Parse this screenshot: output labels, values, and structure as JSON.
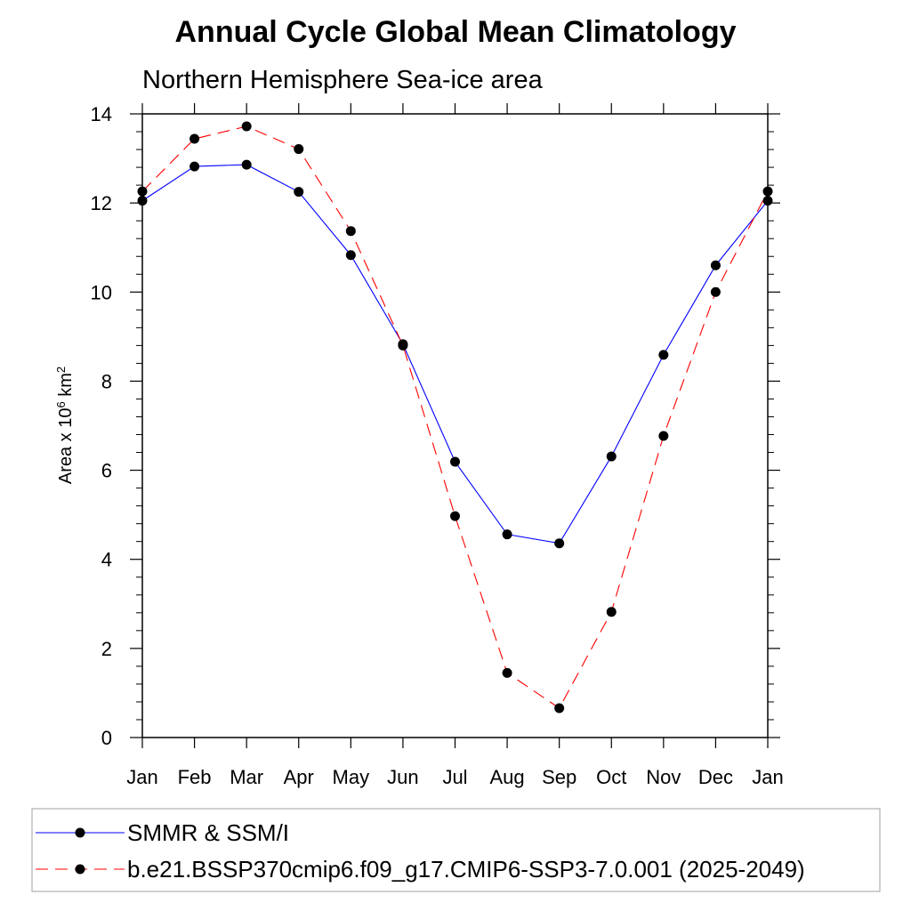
{
  "chart_data": {
    "type": "line",
    "title": "Annual Cycle Global Mean Climatology",
    "subtitle": "Northern Hemisphere Sea-ice area",
    "xlabel": "",
    "ylabel_prefix": "Area x 10",
    "ylabel_exp1": "6",
    "ylabel_unit": " km",
    "ylabel_exp2": "2",
    "categories": [
      "Jan",
      "Feb",
      "Mar",
      "Apr",
      "May",
      "Jun",
      "Jul",
      "Aug",
      "Sep",
      "Oct",
      "Nov",
      "Dec",
      "Jan"
    ],
    "ylim": [
      0,
      14
    ],
    "yticks": [
      "0",
      "2",
      "4",
      "6",
      "8",
      "10",
      "12",
      "14"
    ],
    "grid": false,
    "legend_position": "bottom",
    "series": [
      {
        "name": "SMMR & SSM/I",
        "color": "#0000ff",
        "line_style": "solid",
        "marker": "filled-circle",
        "values": [
          12.05,
          12.82,
          12.86,
          12.25,
          10.83,
          8.83,
          6.19,
          4.56,
          4.36,
          6.31,
          8.59,
          10.6,
          12.05
        ]
      },
      {
        "name": "b.e21.BSSP370cmip6.f09_g17.CMIP6-SSP3-7.0.001 (2025-2049)",
        "color": "#ff0000",
        "line_style": "dashed",
        "marker": "filled-circle",
        "values": [
          12.26,
          13.44,
          13.72,
          13.21,
          11.37,
          8.8,
          4.97,
          1.45,
          0.66,
          2.82,
          6.77,
          10.0,
          12.26
        ]
      }
    ]
  }
}
